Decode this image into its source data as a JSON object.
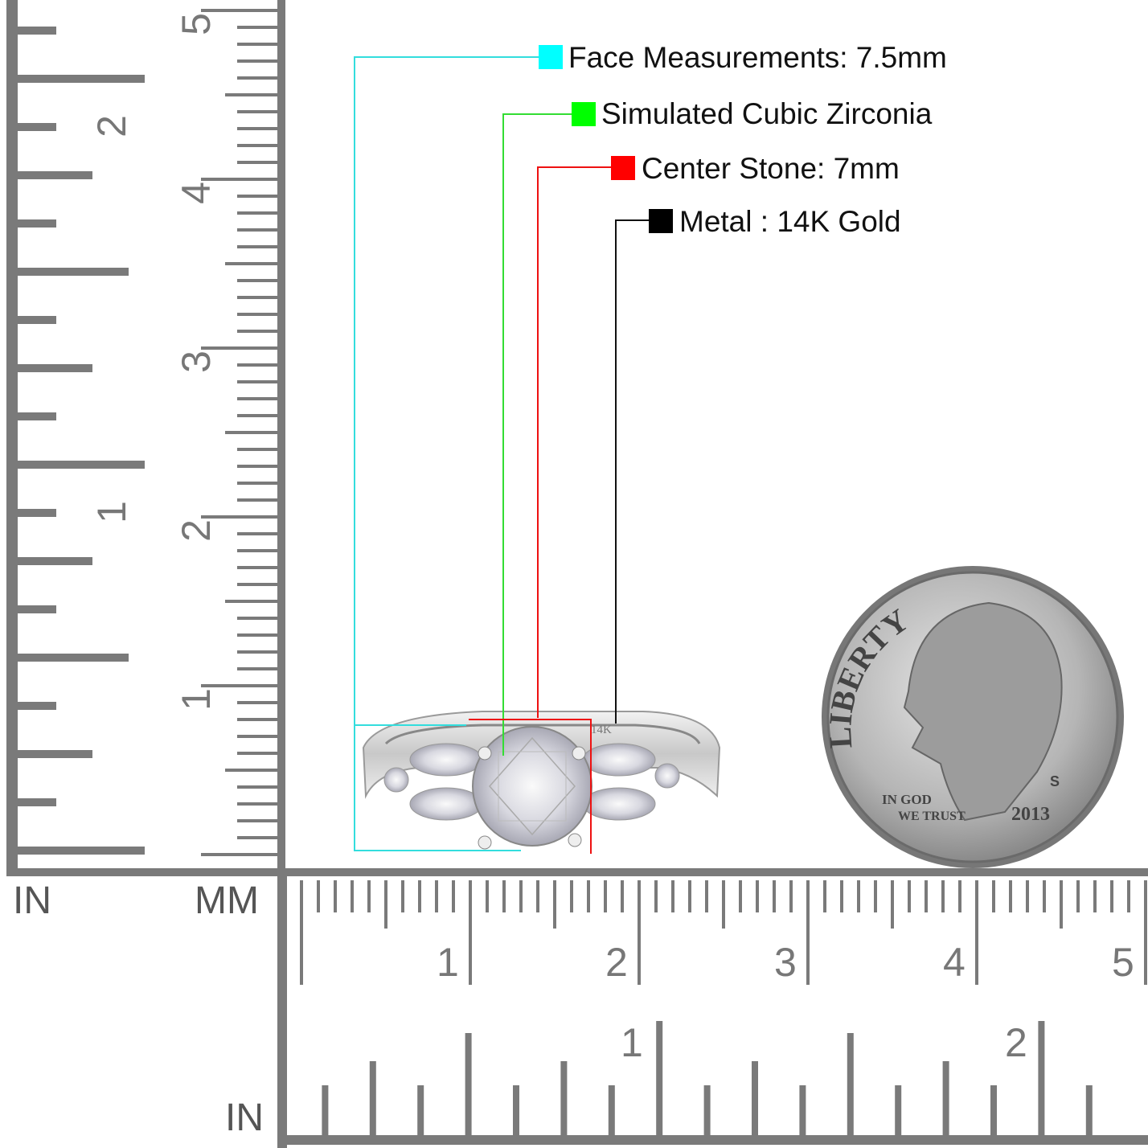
{
  "callouts": [
    {
      "label": "Face Measurements: 7.5mm",
      "color": "#00ffff"
    },
    {
      "label": "Simulated Cubic Zirconia",
      "color": "#00ff00"
    },
    {
      "label": "Center Stone: 7mm",
      "color": "#ff0000"
    },
    {
      "label": "Metal : 14K Gold",
      "color": "#000000"
    }
  ],
  "ring": {
    "stamp": "14K"
  },
  "dime": {
    "liberty": "LIBERTY",
    "motto_line1": "IN GOD",
    "motto_line2": "WE TRUST",
    "year": "2013",
    "mint_mark": "S"
  },
  "rulers": {
    "unit_in_left": "IN",
    "unit_mm": "MM",
    "unit_in_bottom": "IN",
    "vertical_in_labels": [
      "1",
      "2"
    ],
    "vertical_cm_labels": [
      "1",
      "2",
      "3",
      "4",
      "5"
    ],
    "horizontal_cm_labels": [
      "1",
      "2",
      "3",
      "4",
      "5"
    ],
    "horizontal_in_labels": [
      "1",
      "2"
    ],
    "color": "#7a7a7a"
  }
}
